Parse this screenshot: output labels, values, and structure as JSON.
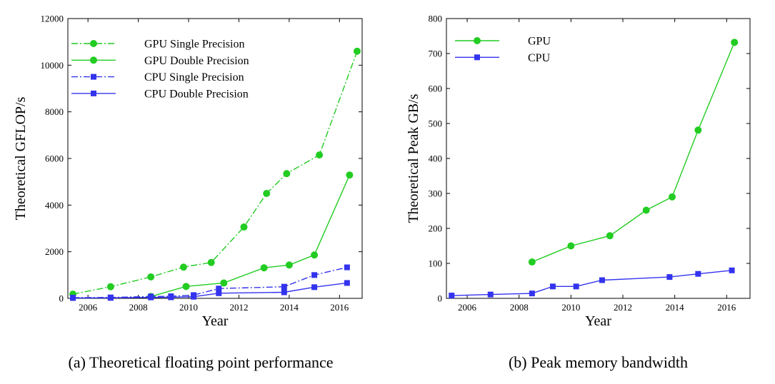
{
  "chart_data": [
    {
      "type": "line",
      "caption": "(a)  Theoretical floating point performance",
      "xlabel": "Year",
      "ylabel": "Theoretical GFLOP/s",
      "xlim": [
        2005.2,
        2016.9
      ],
      "ylim": [
        0,
        12000
      ],
      "xticks": [
        2006,
        2008,
        2010,
        2012,
        2014,
        2016
      ],
      "yticks": [
        0,
        2000,
        4000,
        6000,
        8000,
        10000,
        12000
      ],
      "grid": false,
      "legend_position": "top-left",
      "series": [
        {
          "name": "GPU Single Precision",
          "color": "#22cc22",
          "dash": "dashdot",
          "marker": "circle",
          "x": [
            2005.4,
            2006.9,
            2008.5,
            2009.8,
            2010.9,
            2012.2,
            2013.1,
            2013.9,
            2015.2,
            2016.7
          ],
          "y": [
            180,
            500,
            920,
            1340,
            1540,
            3060,
            4500,
            5350,
            6150,
            10600
          ]
        },
        {
          "name": "GPU Double Precision",
          "color": "#22cc22",
          "dash": "solid",
          "marker": "circle",
          "x": [
            2008.5,
            2009.9,
            2011.4,
            2013.0,
            2014.0,
            2015.0,
            2016.4
          ],
          "y": [
            80,
            510,
            660,
            1310,
            1430,
            1860,
            5290
          ]
        },
        {
          "name": "CPU Single Precision",
          "color": "#3333ee",
          "dash": "dashdot",
          "marker": "square",
          "x": [
            2005.4,
            2006.9,
            2008.5,
            2009.3,
            2010.2,
            2011.2,
            2013.8,
            2015.0,
            2016.3
          ],
          "y": [
            30,
            40,
            80,
            90,
            140,
            420,
            500,
            1000,
            1330
          ]
        },
        {
          "name": "CPU Double Precision",
          "color": "#3333ee",
          "dash": "solid",
          "marker": "square",
          "x": [
            2005.4,
            2006.9,
            2008.5,
            2009.3,
            2010.2,
            2011.2,
            2013.8,
            2015.0,
            2016.3
          ],
          "y": [
            15,
            20,
            40,
            45,
            70,
            220,
            260,
            480,
            660
          ]
        }
      ]
    },
    {
      "type": "line",
      "caption": "(b)  Peak memory bandwidth",
      "xlabel": "Year",
      "ylabel": "Theoretical Peak GB/s",
      "xlim": [
        2005.2,
        2016.9
      ],
      "ylim": [
        0,
        800
      ],
      "xticks": [
        2006,
        2008,
        2010,
        2012,
        2014,
        2016
      ],
      "yticks": [
        0,
        100,
        200,
        300,
        400,
        500,
        600,
        700,
        800
      ],
      "grid": false,
      "legend_position": "top-left",
      "series": [
        {
          "name": "GPU",
          "color": "#22cc22",
          "dash": "solid",
          "marker": "circle",
          "x": [
            2008.5,
            2010.0,
            2011.5,
            2012.9,
            2013.9,
            2014.9,
            2016.3
          ],
          "y": [
            104,
            150,
            179,
            252,
            290,
            481,
            732
          ]
        },
        {
          "name": "CPU",
          "color": "#3333ee",
          "dash": "solid",
          "marker": "square",
          "x": [
            2005.4,
            2006.9,
            2008.5,
            2009.3,
            2010.2,
            2011.2,
            2013.8,
            2014.9,
            2016.2
          ],
          "y": [
            8,
            11,
            14,
            34,
            34,
            52,
            61,
            70,
            80
          ]
        }
      ]
    }
  ]
}
